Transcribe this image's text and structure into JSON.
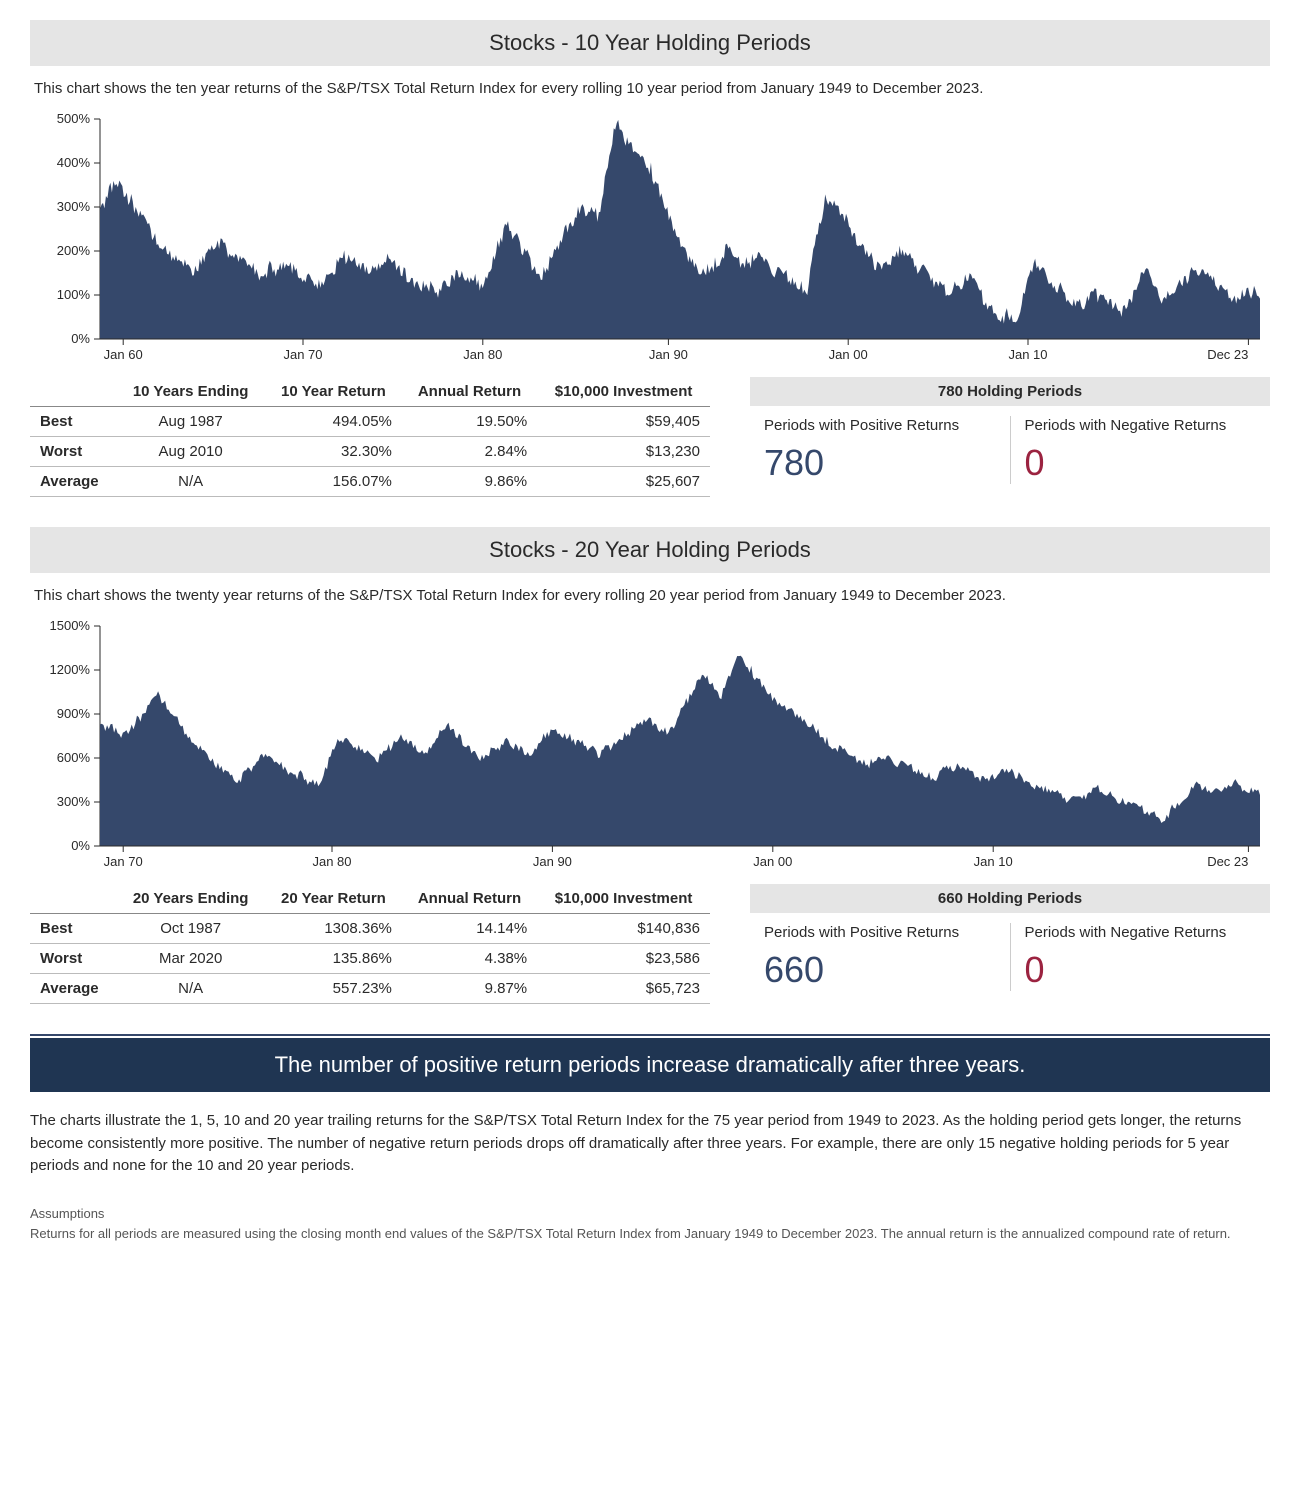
{
  "charts": [
    {
      "id": "c10",
      "title": "Stocks - 10 Year Holding Periods",
      "subtitle": "This chart shows the ten year returns of the S&P/TSX Total Return Index for every rolling 10 year period from January 1949 to December 2023.",
      "chart": {
        "type": "area",
        "fill_color": "#35486b",
        "background": "#ffffff",
        "axis_color": "#2a2a2a",
        "label_fontsize": 13,
        "ylim": [
          0,
          500
        ],
        "yticks": [
          0,
          100,
          200,
          300,
          400,
          500
        ],
        "ytick_suffix": "%",
        "xticks": [
          "Jan 60",
          "Jan 70",
          "Jan 80",
          "Jan 90",
          "Jan 00",
          "Jan 10",
          "Dec 23"
        ],
        "xtick_positions": [
          0.02,
          0.175,
          0.33,
          0.49,
          0.645,
          0.8,
          0.99
        ],
        "n_points": 780,
        "series": []
      },
      "stats": {
        "columns": [
          "",
          "10 Years Ending",
          "10 Year Return",
          "Annual Return",
          "$10,000 Investment"
        ],
        "rows": [
          [
            "Best",
            "Aug 1987",
            "494.05%",
            "19.50%",
            "$59,405"
          ],
          [
            "Worst",
            "Aug 2010",
            "32.30%",
            "2.84%",
            "$13,230"
          ],
          [
            "Average",
            "N/A",
            "156.07%",
            "9.86%",
            "$25,607"
          ]
        ]
      },
      "holding_periods": {
        "header": "780 Holding Periods",
        "positive_label": "Periods with Positive Returns",
        "positive_value": "780",
        "negative_label": "Periods with Negative Returns",
        "negative_value": "0"
      }
    },
    {
      "id": "c20",
      "title": "Stocks - 20 Year Holding Periods",
      "subtitle": "This chart shows the twenty year returns of the S&P/TSX Total Return Index for every rolling 20 year period from January 1949 to December 2023.",
      "chart": {
        "type": "area",
        "fill_color": "#35486b",
        "background": "#ffffff",
        "axis_color": "#2a2a2a",
        "label_fontsize": 13,
        "ylim": [
          0,
          1500
        ],
        "yticks": [
          0,
          300,
          600,
          900,
          1200,
          1500
        ],
        "ytick_suffix": "%",
        "xticks": [
          "Jan 70",
          "Jan 80",
          "Jan 90",
          "Jan 00",
          "Jan 10",
          "Dec 23"
        ],
        "xtick_positions": [
          0.02,
          0.2,
          0.39,
          0.58,
          0.77,
          0.99
        ],
        "n_points": 660,
        "series": []
      },
      "stats": {
        "columns": [
          "",
          "20 Years Ending",
          "20 Year Return",
          "Annual Return",
          "$10,000 Investment"
        ],
        "rows": [
          [
            "Best",
            "Oct 1987",
            "1308.36%",
            "14.14%",
            "$140,836"
          ],
          [
            "Worst",
            "Mar 2020",
            "135.86%",
            "4.38%",
            "$23,586"
          ],
          [
            "Average",
            "N/A",
            "557.23%",
            "9.87%",
            "$65,723"
          ]
        ]
      },
      "holding_periods": {
        "header": "660 Holding Periods",
        "positive_label": "Periods with Positive Returns",
        "positive_value": "660",
        "negative_label": "Periods with Negative Returns",
        "negative_value": "0"
      }
    }
  ],
  "summary": {
    "banner": "The number of positive return periods increase dramatically after three years.",
    "body": "The charts illustrate the 1, 5, 10 and 20 year trailing returns for the S&P/TSX Total Return Index for the 75 year period from 1949 to 2023. As the holding period gets longer, the returns become consistently more positive. The number of negative return periods drops off dramatically after three years. For example, there are only 15 negative holding periods for 5 year periods and none for the 10 and 20 year periods.",
    "assumptions_heading": "Assumptions",
    "assumptions_text": "Returns for all periods are measured using the closing month end values of the S&P/TSX Total Return Index from January 1949 to December 2023. The annual return is the annualized compound rate of return."
  },
  "colors": {
    "title_bar_bg": "#e5e5e5",
    "dark_banner_bg": "#1f3552",
    "positive": "#35486b",
    "negative": "#9b2340",
    "text": "#2a2a2a"
  }
}
